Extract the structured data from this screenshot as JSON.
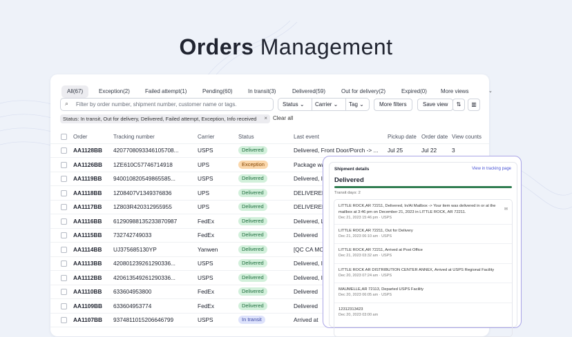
{
  "header": {
    "title_bold": "Orders",
    "title_rest": "Management"
  },
  "tabs": {
    "selected": 0,
    "items": [
      "All(67)",
      "Exception(2)",
      "Failed attempt(1)",
      "Pending(60)",
      "In transit(3)",
      "Delivered(59)",
      "Out for delivery(2)",
      "Expired(0)",
      "More views"
    ]
  },
  "toolbar": {
    "search_placeholder": "Filter by order number, shipment number, customer name or tags.",
    "filters": [
      "Status",
      "Carrier",
      "Tag"
    ],
    "more_filters": "More filters",
    "save_view": "Save view"
  },
  "filter_chip": {
    "label": "Status: In transit, Out for delivery, Delivered, Failed attempt, Exception, Info received",
    "clear": "Clear all"
  },
  "table": {
    "columns": [
      "Order",
      "Tracking number",
      "Carrier",
      "Status",
      "Last event",
      "Pickup date",
      "Order date",
      "View counts"
    ],
    "badges": {
      "Delivered": [
        "#d2f0db",
        "#1c6b3b"
      ],
      "Exception": [
        "#fbd7ab",
        "#854600"
      ],
      "In transit": [
        "#dde2fb",
        "#3d4aa6"
      ]
    },
    "rows": [
      [
        "AA1128BB",
        "4207708093346105708...",
        "USPS",
        "Delivered",
        "Delivered, Front Door/Porch -> ...",
        "Jul 25",
        "Jul 22",
        3
      ],
      [
        "AA1126BB",
        "1ZE610C57746714918",
        "UPS",
        "Exception",
        "Package wa"
      ],
      [
        "AA1119BB",
        "940010820549865585...",
        "USPS",
        "Delivered",
        "Delivered, I"
      ],
      [
        "AA1118BB",
        "1Z08407V1349376836",
        "UPS",
        "Delivered",
        "DELIVERED"
      ],
      [
        "AA1117BB",
        "1Z803R420312955955",
        "UPS",
        "Delivered",
        "DELIVERED"
      ],
      [
        "AA1116BB",
        "61290988135233870987",
        "FedEx",
        "Delivered",
        "Delivered, L"
      ],
      [
        "AA1115BB",
        "732742749033",
        "FedEx",
        "Delivered",
        "Delivered"
      ],
      [
        "AA1114BB",
        "UJ375685130YP",
        "Yanwen",
        "Delivered",
        "[QC CA MO"
      ],
      [
        "AA1113BB",
        "420801239261290336...",
        "USPS",
        "Delivered",
        "Delivered, I"
      ],
      [
        "AA1112BB",
        "420613549261290336...",
        "USPS",
        "Delivered",
        "Delivered, I"
      ],
      [
        "AA1110BB",
        "633604953800",
        "FedEx",
        "Delivered",
        "Delivered"
      ],
      [
        "AA1109BB",
        "633604953774",
        "FedEx",
        "Delivered",
        "Delivered"
      ],
      [
        "AA1107BB",
        "9374811015206646799",
        "USPS",
        "In transit",
        "Arrived at"
      ]
    ]
  },
  "panel": {
    "title": "Shipment details",
    "link": "View in tracking page",
    "status": "Delivered",
    "transit": "Transit days: 2",
    "events": [
      {
        "text": "LITTLE ROCK,AR 72211, Delivered, In/At Mailbox -> Your item was delivered in or at the mailbox at 3:46 pm on December 21, 2023 in LITTLE ROCK, AR 72211.",
        "meta": "Dec 21, 2023 15:46 pm · USPS"
      },
      {
        "text": "LITTLE ROCK,AR 72211, Out for Delivery",
        "meta": "Dec 21, 2023 06:10 am · USPS"
      },
      {
        "text": "LITTLE ROCK,AR 72211, Arrived at Post Office",
        "meta": "Dec 21, 2023 03:32 am · USPS"
      },
      {
        "text": "LITTLE ROCK AR DISTRIBUTION CENTER ANNEX, Arrived at USPS Regional Facility",
        "meta": "Dec 20, 2023 07:24 am · USPS"
      },
      {
        "text": "MAUMELLE,AR 72113, Departed USPS Facility",
        "meta": "Dec 20, 2023 06:05 am · USPS"
      },
      {
        "text": "12312313423",
        "meta": "Dec 20, 2023 03:00 am"
      }
    ]
  }
}
